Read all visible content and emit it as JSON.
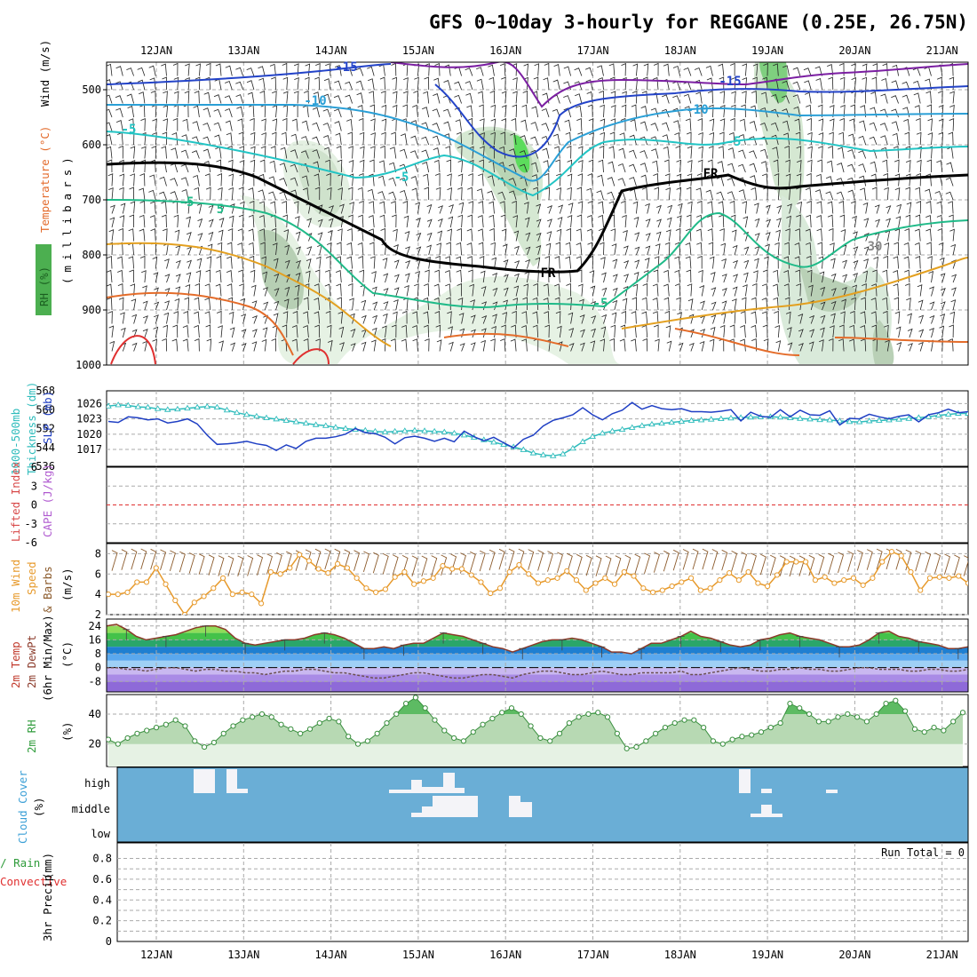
{
  "title": "GFS 0~10day 3-hourly for REGGANE (0.25E, 26.75N)",
  "dates": [
    "12JAN",
    "13JAN",
    "14JAN",
    "15JAN",
    "16JAN",
    "17JAN",
    "18JAN",
    "19JAN",
    "20JAN",
    "21JAN"
  ],
  "run_total": "Run Total = 0",
  "panel_labels": {
    "upper_rh": "RH (%)",
    "upper_temp": "Temperature (°C)",
    "upper_wind": "Wind (m/s)",
    "upper_unit": "(millibars)",
    "thickness": "1000-500mb",
    "thickness2": "Thickness (dm)",
    "slp": "SLP (mb)",
    "lifted": "Lifted Index",
    "cape": "CAPE (J/kg)",
    "wind10_a": "10m Wind",
    "wind10_b": "Speed",
    "wind10_c": "& Barbs",
    "wind10_unit": "(m/s)",
    "temp_a": "2m Temp",
    "temp_b": "2m DewPt",
    "temp_c": "(6hr Min/Max)",
    "temp_unit": "(°C)",
    "rh2m": "2m RH",
    "rh2m_unit": "(%)",
    "cloud": "Cloud Cover",
    "cloud_unit": "(%)",
    "precip_a": "tal / Rain",
    "precip_b": "Convective",
    "precip_c": "3hr Precip",
    "precip_unit": "(mm)"
  },
  "chart_data": [
    {
      "type": "heatmap",
      "panel": "upper_air",
      "ylabel": "millibars",
      "y_ticks": [
        500,
        600,
        700,
        800,
        900,
        1000
      ],
      "ylim": [
        450,
        1000
      ],
      "contour_labels": [
        "-15",
        "-15",
        "-10",
        "-10",
        "-5",
        "-5",
        "-5",
        "-5",
        "5",
        "-5",
        "FR",
        "FR",
        "30"
      ],
      "colors": {
        "temp_cold": "#7b1fa2",
        "temp_minus15": "#2343c8",
        "temp_minus10": "#2a9fd6",
        "temp_minus5": "#22c4c4",
        "temp_5": "#1fba88",
        "temp_warm": "#e3a020",
        "temp_hot": "#e03030",
        "rh": "#2e8b3a"
      }
    },
    {
      "type": "line",
      "panel": "slp_thickness",
      "thickness_ticks": [
        536,
        544,
        552,
        560,
        568
      ],
      "slp_ticks": [
        1017,
        1020,
        1023,
        1026
      ],
      "series": [
        {
          "name": "SLP (mb)",
          "color": "#1f3fc4",
          "axis": "slp",
          "values": [
            1022.5,
            1022.3,
            1023.4,
            1023.2,
            1022.8,
            1023.0,
            1022.2,
            1022.5,
            1023.0,
            1022.0,
            1019.8,
            1018.0,
            1018.1,
            1018.3,
            1018.6,
            1018.1,
            1017.8,
            1016.8,
            1017.9,
            1017.2,
            1018.6,
            1019.2,
            1019.2,
            1019.5,
            1020.0,
            1021.1,
            1020.3,
            1020.1,
            1019.4,
            1018.1,
            1019.3,
            1019.6,
            1019.2,
            1018.6,
            1019.2,
            1018.5,
            1020.6,
            1019.5,
            1018.7,
            1019.4,
            1018.3,
            1017.3,
            1019.0,
            1019.8,
            1021.6,
            1022.7,
            1023.2,
            1023.8,
            1025.2,
            1023.8,
            1022.8,
            1024.0,
            1024.7,
            1026.2,
            1024.9,
            1025.6,
            1025.0,
            1024.8,
            1025.0,
            1024.4,
            1024.4,
            1024.3,
            1024.5,
            1024.8,
            1022.6,
            1024.3,
            1023.5,
            1023.3,
            1024.8,
            1023.4,
            1024.7,
            1023.8,
            1023.7,
            1024.6,
            1021.8,
            1023.1,
            1023.0,
            1023.9,
            1023.4,
            1023.0,
            1023.5,
            1023.8,
            1022.4,
            1023.8,
            1024.2,
            1024.9,
            1024.2,
            1024.4
          ]
        },
        {
          "name": "1000-500mb Thickness (dm)",
          "color": "#2fbcbc",
          "axis": "thickness",
          "values": [
            561.5,
            562.0,
            561.8,
            561.2,
            561.0,
            560.4,
            560.0,
            560.2,
            560.6,
            561.0,
            561.3,
            561.0,
            559.8,
            558.7,
            557.9,
            557.2,
            556.5,
            556.0,
            555.4,
            554.8,
            554.2,
            553.6,
            553.2,
            552.5,
            552.0,
            551.6,
            551.2,
            550.8,
            550.5,
            550.8,
            551.0,
            551.2,
            551.0,
            550.8,
            550.5,
            550.0,
            549.2,
            548.2,
            547.2,
            546.2,
            545.2,
            544.2,
            543.0,
            541.6,
            540.8,
            540.4,
            541.2,
            543.6,
            546.4,
            548.6,
            550.0,
            550.9,
            551.6,
            552.4,
            553.2,
            553.8,
            554.2,
            554.6,
            555.0,
            555.4,
            555.6,
            555.9,
            556.1,
            556.4,
            556.6,
            556.8,
            556.9,
            557.0,
            556.8,
            556.5,
            556.2,
            556.0,
            555.7,
            555.6,
            555.2,
            554.9,
            554.8,
            555.2,
            555.4,
            555.6,
            555.9,
            556.2,
            556.6,
            557.0,
            557.6,
            558.0,
            558.4,
            558.4
          ]
        }
      ]
    },
    {
      "type": "line",
      "panel": "stability",
      "lifted_index_ticks": [
        6,
        3,
        0,
        -3,
        -6
      ],
      "series": [
        {
          "name": "Lifted Index",
          "color": "#d84a4a",
          "values": []
        }
      ]
    },
    {
      "type": "line",
      "panel": "wind10m",
      "ylabel": "(m/s)",
      "y_ticks": [
        2,
        4,
        6,
        8
      ],
      "ylim": [
        2,
        9
      ],
      "series": [
        {
          "name": "10m Wind Speed",
          "color": "#e79a2c",
          "values": [
            4.0,
            4.0,
            4.2,
            5.2,
            5.2,
            6.6,
            5.0,
            3.4,
            2.0,
            3.2,
            3.8,
            4.6,
            5.6,
            4.0,
            4.2,
            4.0,
            3.1,
            6.2,
            6.0,
            6.6,
            7.9,
            7.3,
            6.5,
            6.1,
            7.0,
            6.6,
            5.6,
            4.6,
            4.2,
            4.5,
            5.7,
            6.2,
            5.0,
            5.3,
            5.6,
            6.8,
            6.5,
            6.5,
            5.9,
            5.2,
            4.1,
            4.6,
            6.2,
            6.9,
            6.0,
            5.1,
            5.4,
            5.6,
            6.3,
            5.4,
            4.4,
            5.1,
            5.6,
            5.0,
            6.2,
            5.8,
            4.6,
            4.2,
            4.4,
            4.8,
            5.2,
            5.6,
            4.4,
            4.6,
            5.4,
            6.1,
            5.4,
            6.2,
            5.1,
            4.8,
            5.9,
            7.2,
            7.2,
            7.2,
            5.4,
            5.7,
            5.1,
            5.4,
            5.6,
            4.9,
            5.6,
            7.2,
            8.2,
            7.8,
            6.2,
            4.4,
            5.6,
            5.7,
            5.6,
            5.8,
            5.1
          ]
        }
      ]
    },
    {
      "type": "area",
      "panel": "temperature",
      "ylabel": "(°C)",
      "y_ticks": [
        24,
        16,
        8,
        0,
        -8
      ],
      "ylim": [
        -14,
        28
      ],
      "series": [
        {
          "name": "2m Temp",
          "color": "#8b3a2a",
          "values": [
            24,
            25,
            22,
            18,
            16,
            17,
            18,
            19,
            21,
            23,
            24,
            24,
            22,
            17,
            14,
            13,
            14,
            15,
            16,
            16,
            17,
            19,
            20,
            19,
            17,
            14,
            11,
            11,
            12,
            11,
            13,
            14,
            14,
            17,
            20,
            19,
            18,
            16,
            14,
            12,
            11,
            9,
            11,
            13,
            15,
            16,
            16,
            17,
            16,
            14,
            12,
            9,
            9,
            8,
            11,
            14,
            14,
            16,
            18,
            21,
            18,
            17,
            15,
            13,
            12,
            13,
            16,
            17,
            19,
            20,
            18,
            17,
            16,
            14,
            12,
            12,
            13,
            16,
            20,
            21,
            18,
            17,
            15,
            14,
            13,
            11,
            11,
            12
          ]
        },
        {
          "name": "2m DewPt",
          "color": "#6b5050",
          "values": [
            0,
            0,
            -1,
            -1,
            -2,
            -1,
            0,
            0,
            -1,
            -2,
            -1,
            -1,
            -2,
            -2,
            -3,
            -3,
            -4,
            -3,
            -2,
            -2,
            -1,
            -1,
            -2,
            -3,
            -3,
            -4,
            -5,
            -6,
            -6,
            -5,
            -4,
            -3,
            -3,
            -4,
            -5,
            -6,
            -6,
            -5,
            -4,
            -4,
            -5,
            -6,
            -4,
            -3,
            -2,
            -2,
            -3,
            -4,
            -4,
            -3,
            -2,
            -3,
            -4,
            -4,
            -3,
            -3,
            -3,
            -3,
            -2,
            -4,
            -4,
            -3,
            -2,
            -1,
            0,
            -1,
            -2,
            -2,
            -1,
            -1,
            0,
            -1,
            -1,
            -2,
            -2,
            -1,
            0,
            0,
            -1,
            -1,
            -1,
            -2,
            -2,
            -1,
            -1,
            -2,
            -2,
            -1
          ]
        }
      ]
    },
    {
      "type": "area",
      "panel": "rh2m",
      "ylabel": "(%)",
      "y_ticks": [
        20,
        40
      ],
      "ylim": [
        5,
        53
      ],
      "series": [
        {
          "name": "2m RH",
          "color": "#5dbb63",
          "values": [
            23,
            20,
            24,
            27,
            29,
            31,
            33,
            36,
            32,
            22,
            18,
            21,
            27,
            32,
            36,
            38,
            40,
            38,
            33,
            30,
            27,
            30,
            34,
            37,
            35,
            25,
            20,
            22,
            27,
            34,
            40,
            47,
            51,
            44,
            36,
            29,
            24,
            22,
            28,
            33,
            37,
            41,
            44,
            40,
            32,
            24,
            22,
            27,
            34,
            38,
            40,
            41,
            38,
            27,
            17,
            18,
            22,
            27,
            31,
            34,
            36,
            36,
            31,
            22,
            20,
            23,
            25,
            26,
            28,
            31,
            34,
            47,
            44,
            40,
            35,
            35,
            38,
            40,
            38,
            35,
            40,
            47,
            49,
            42,
            30,
            28,
            31,
            29,
            35,
            41
          ]
        }
      ]
    },
    {
      "type": "bar",
      "panel": "cloud_cover",
      "categories": [
        "high",
        "middle",
        "low"
      ],
      "colors": {
        "clear": "#6aaed6",
        "cloud": "#f4f4f8"
      }
    },
    {
      "type": "bar",
      "panel": "precip",
      "ylabel": "3hr Precip (mm)",
      "y_ticks": [
        0,
        0.2,
        0.4,
        0.6,
        0.8
      ],
      "ylim": [
        0,
        0.95
      ],
      "values": [],
      "annotation": "Run Total = 0"
    }
  ]
}
